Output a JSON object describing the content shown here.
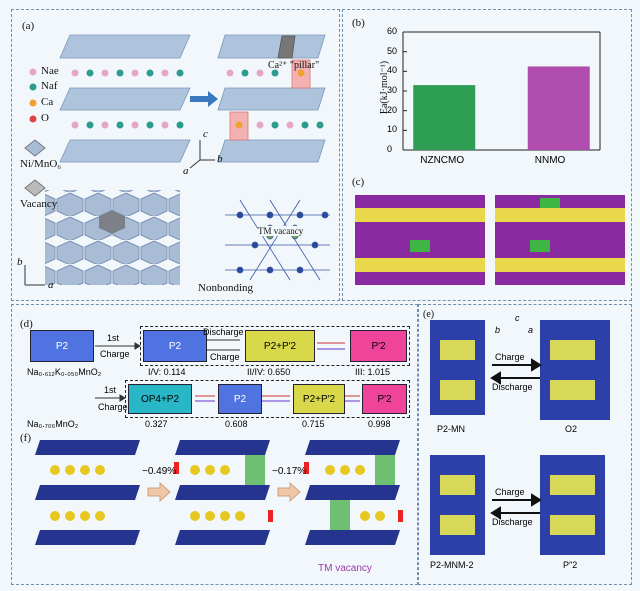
{
  "panel_a": {
    "label": "(a)",
    "legend": [
      "Nae",
      "Naf",
      "Ca",
      "O"
    ],
    "octa_label": "Ni/MnO₆",
    "vacancy_label": "Vacancy",
    "pillar_label": "Ca²⁺ \"pillar\"",
    "tm_vacancy_label": "TM vacancy",
    "nonbonding_label": "Nonbonding",
    "axis_c": "c",
    "axis_a": "a",
    "axis_b": "b"
  },
  "panel_b": {
    "label": "(b)"
  },
  "chart_data": {
    "type": "bar",
    "categories": [
      "NZNCMO",
      "NNMO"
    ],
    "values": [
      33,
      42.5
    ],
    "ylabel": "Ea(kJ·mol⁻¹)",
    "ylim": [
      0,
      60
    ],
    "yticks": [
      0,
      10,
      20,
      30,
      40,
      50,
      60
    ],
    "colors": [
      "#2e9e55",
      "#b24db0"
    ]
  },
  "panel_c": {
    "label": "(c)"
  },
  "panel_d": {
    "label": "(d)",
    "row1": {
      "start": "P2",
      "step1": "1st",
      "step1b": "Charge",
      "phase2": "P2",
      "discharge": "Discharge",
      "charge": "Charge",
      "phase3": "P2+P′2",
      "phase4": "P′2",
      "formula": "Na₀.₆₁₂K₀.₀₅₀MnO₂",
      "v1": "I/V: 0.114",
      "v2": "II/IV: 0.650",
      "v3": "III: 1.015"
    },
    "row2": {
      "step1": "1st",
      "step1b": "Charge",
      "phase1": "OP4+P2",
      "phase2": "P2",
      "phase3": "P2+P′2",
      "phase4": "P′2",
      "formula": "Na₀.₇₀₆MnO₂",
      "v1": "0.327",
      "v2": "0.608",
      "v3": "0.715",
      "v4": "0.998"
    }
  },
  "panel_e": {
    "label": "(e)",
    "charge": "Charge",
    "discharge": "Discharge",
    "s1": "P2-MN",
    "s2": "O2",
    "s3": "P2-MNM-2",
    "s4": "P″2",
    "axis_c": "c",
    "axis_a": "a",
    "axis_b": "b"
  },
  "panel_f": {
    "label": "(f)",
    "pct1": "−0.49%",
    "pct2": "−0.17%",
    "tm_vacancy": "TM vacancy"
  }
}
